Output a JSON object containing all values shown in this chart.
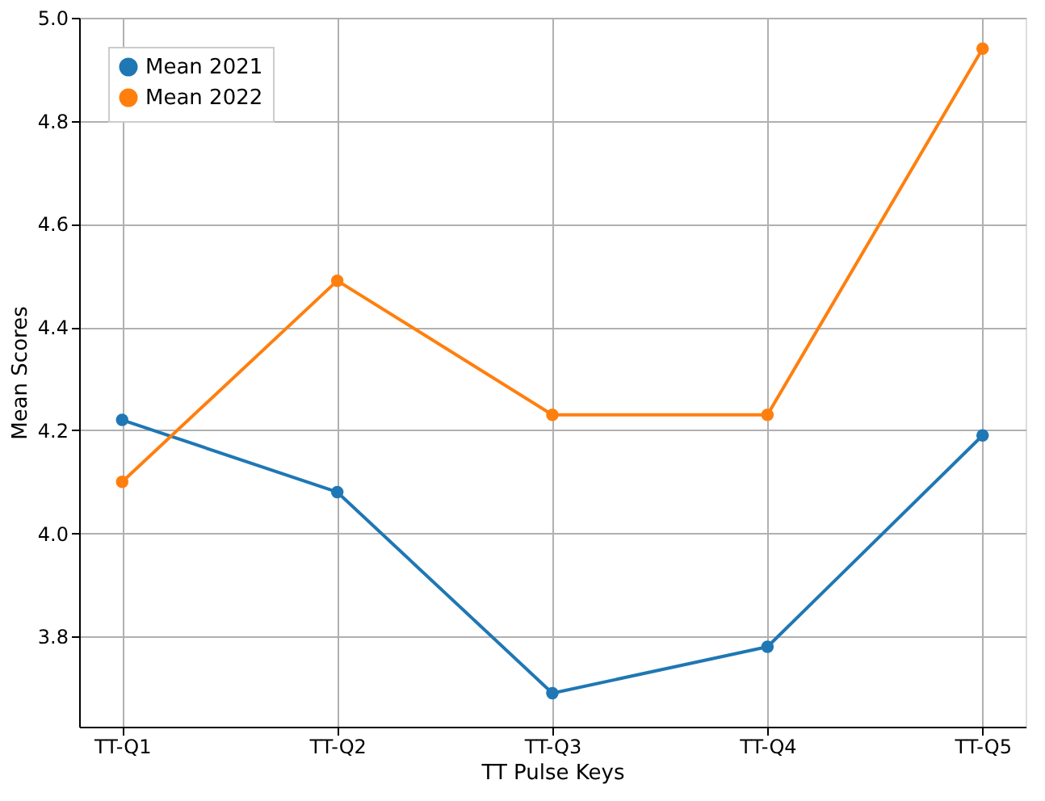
{
  "chart_data": {
    "type": "line",
    "xlabel": "TT Pulse Keys",
    "ylabel": "Mean Scores",
    "categories": [
      "TT-Q1",
      "TT-Q2",
      "TT-Q3",
      "TT-Q4",
      "TT-Q5"
    ],
    "series": [
      {
        "name": "Mean 2021",
        "color": "#1f77b4",
        "values": [
          4.22,
          4.08,
          3.69,
          3.78,
          4.19
        ]
      },
      {
        "name": "Mean 2022",
        "color": "#ff7f0e",
        "values": [
          4.1,
          4.49,
          4.23,
          4.23,
          4.94
        ]
      }
    ],
    "ylim": [
      3.625,
      5.0
    ],
    "yticks": [
      3.8,
      {
        "value": 4,
        "label": "4.0"
      },
      4.2,
      4.4,
      4.6,
      4.8,
      {
        "value": 5,
        "label": "5.0"
      }
    ],
    "grid": true,
    "legend": "top left",
    "marker": "circle",
    "line_style": "solid"
  }
}
